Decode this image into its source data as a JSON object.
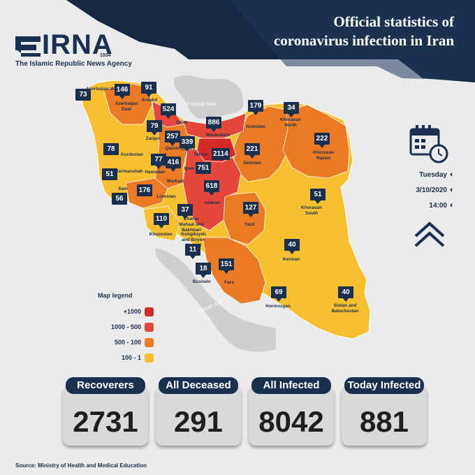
{
  "header": {
    "title_line1": "Official statistics of",
    "title_line2": "coronavirus infection in Iran"
  },
  "logo": {
    "name": "IRNA",
    "year": "1934",
    "tagline": "The Islamic Republic News Agency"
  },
  "date": {
    "day": "Tuesday",
    "date": "3/10/2020",
    "time": "14:00"
  },
  "legend": {
    "title": "Map legend",
    "items": [
      {
        "label": "+1000",
        "color": "#d62a2a"
      },
      {
        "label": "1000 - 500",
        "color": "#e5483a"
      },
      {
        "label": "500 - 100",
        "color": "#ea7a23"
      },
      {
        "label": "100 - 1",
        "color": "#f7c030"
      }
    ]
  },
  "seas": {
    "caspian": "Caspian Sea",
    "gulf": "Persian Gulf"
  },
  "provinces": [
    {
      "name": "Azerbaijan West",
      "value": "73"
    },
    {
      "name": "Azerbaijan East",
      "value": "146"
    },
    {
      "name": "Ardabil",
      "value": "91"
    },
    {
      "name": "Gilan",
      "value": "524"
    },
    {
      "name": "Mazandarn",
      "value": "886"
    },
    {
      "name": "Golestan",
      "value": "179"
    },
    {
      "name": "Khorasan North",
      "value": "34"
    },
    {
      "name": "Khorasan Razavi",
      "value": "222"
    },
    {
      "name": "Zanjan",
      "value": "79"
    },
    {
      "name": "Qazvin",
      "value": "257"
    },
    {
      "name": "Alborz",
      "value": "339"
    },
    {
      "name": "Tehran",
      "value": "2114"
    },
    {
      "name": "Semnan",
      "value": "221"
    },
    {
      "name": "Kurdestan",
      "value": "78"
    },
    {
      "name": "Hamedan",
      "value": "77"
    },
    {
      "name": "Markazi",
      "value": "416"
    },
    {
      "name": "Qom",
      "value": "751"
    },
    {
      "name": "Kermanshah",
      "value": "51"
    },
    {
      "name": "Ilam",
      "value": "56"
    },
    {
      "name": "Lorestan",
      "value": "176"
    },
    {
      "name": "Isfahan",
      "value": "618"
    },
    {
      "name": "Khorasan South",
      "value": "51"
    },
    {
      "name": "Yazd",
      "value": "127"
    },
    {
      "name": "Khuzestan",
      "value": "110"
    },
    {
      "name": "Chahar Mahaal and Bakhtiari",
      "value": "37"
    },
    {
      "name": "Kohgiluyeh and Boyer-Ahmad",
      "value": "11"
    },
    {
      "name": "Bushehr",
      "value": "18"
    },
    {
      "name": "Fars",
      "value": "151"
    },
    {
      "name": "Kerman",
      "value": "40"
    },
    {
      "name": "Hormozgan",
      "value": "69"
    },
    {
      "name": "Sistan and Baluchestan",
      "value": "40"
    }
  ],
  "stats": [
    {
      "label": "Recoverers",
      "value": "2731"
    },
    {
      "label": "All Deceased",
      "value": "291"
    },
    {
      "label": "All Infected",
      "value": "8042"
    },
    {
      "label": "Today Infected",
      "value": "881"
    }
  ],
  "source": "Source: Ministry of Health and Medical Education"
}
